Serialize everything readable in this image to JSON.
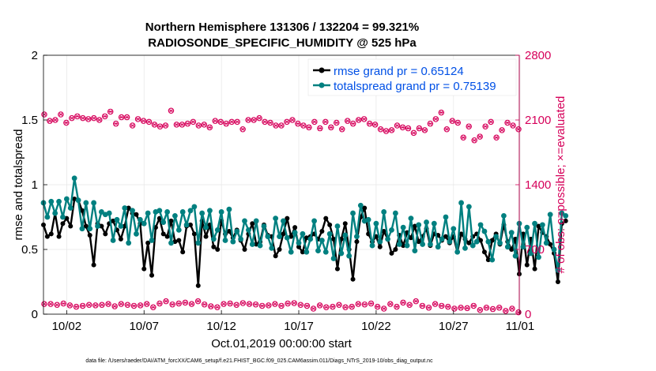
{
  "chart_data": {
    "type": "line",
    "title": "Northern Hemisphere 131306 / 132204 = 99.321%",
    "subtitle": "RADIOSONDE_SPECIFIC_HUMIDITY @ 525 hPa",
    "xlabel": "Oct.01,2019 00:00:00 start",
    "ylabel_left": "rmse and totalspread",
    "ylabel_right": "# of obs: o=possible; ×=evaluated",
    "xlim": [
      0.5,
      31.25
    ],
    "ylim_left": [
      0,
      2
    ],
    "ylim_right": [
      0,
      2800
    ],
    "x_ticks": [
      {
        "value": 2,
        "label": "10/02"
      },
      {
        "value": 7,
        "label": "10/07"
      },
      {
        "value": 12,
        "label": "10/12"
      },
      {
        "value": 17,
        "label": "10/17"
      },
      {
        "value": 22,
        "label": "10/22"
      },
      {
        "value": 27,
        "label": "10/27"
      },
      {
        "value": 32,
        "label": "11/01"
      }
    ],
    "y_ticks_left": [
      "0",
      "0.5",
      "1",
      "1.5",
      "2"
    ],
    "y_ticks_right": [
      "0",
      "700",
      "1400",
      "2100",
      "2800"
    ],
    "x_start": 0.5,
    "x_step": 0.25,
    "legend": [
      {
        "label": "rmse grand pr = 0.65124",
        "color": "#000000"
      },
      {
        "label": "totalspread grand pr = 0.75139",
        "color": "#008080"
      }
    ],
    "series": [
      {
        "name": "rmse",
        "color": "#000000",
        "axis": "left",
        "values": [
          0.69,
          0.6,
          0.62,
          0.78,
          0.6,
          0.7,
          0.74,
          0.68,
          0.89,
          0.88,
          0.8,
          0.68,
          0.61,
          0.38,
          0.7,
          0.68,
          0.62,
          0.7,
          0.72,
          0.65,
          0.58,
          0.68,
          0.82,
          0.78,
          0.77,
          0.7,
          0.35,
          0.55,
          0.3,
          0.67,
          0.74,
          0.62,
          0.6,
          0.72,
          0.56,
          0.57,
          0.48,
          0.68,
          0.69,
          0.62,
          0.22,
          0.72,
          0.6,
          0.69,
          0.52,
          0.5,
          0.72,
          0.62,
          0.64,
          0.59,
          0.65,
          0.57,
          0.5,
          0.62,
          0.7,
          0.54,
          0.56,
          0.69,
          0.61,
          0.6,
          0.45,
          0.5,
          0.62,
          0.74,
          0.6,
          0.67,
          0.52,
          0.48,
          0.59,
          0.6,
          0.62,
          0.58,
          0.64,
          0.74,
          0.69,
          0.58,
          0.35,
          0.58,
          0.7,
          0.5,
          0.27,
          0.56,
          0.75,
          0.82,
          0.62,
          0.56,
          0.6,
          0.52,
          0.64,
          0.58,
          0.47,
          0.5,
          0.61,
          0.53,
          0.63,
          0.59,
          0.68,
          0.56,
          0.6,
          0.66,
          0.53,
          0.62,
          0.61,
          0.57,
          0.6,
          0.55,
          0.6,
          0.48,
          0.62,
          0.58,
          0.55,
          0.6,
          0.62,
          0.57,
          0.48,
          0.42,
          0.57,
          0.62,
          0.54,
          0.69,
          0.56,
          0.5,
          0.58,
          0.31,
          0.62,
          0.38,
          0.58,
          0.35,
          0.68,
          0.63,
          0.6,
          0.54,
          0.47,
          0.25,
          0.7,
          0.72
        ]
      },
      {
        "name": "totalspread",
        "color": "#008080",
        "axis": "left",
        "values": [
          0.86,
          0.75,
          0.87,
          0.78,
          0.87,
          0.75,
          0.89,
          0.82,
          1.05,
          0.88,
          0.66,
          0.86,
          0.66,
          0.86,
          0.68,
          0.79,
          0.77,
          0.78,
          0.57,
          0.73,
          0.68,
          0.82,
          0.55,
          0.8,
          0.62,
          0.73,
          0.7,
          0.78,
          0.57,
          0.79,
          0.8,
          0.71,
          0.79,
          0.55,
          0.76,
          0.65,
          0.79,
          0.69,
          0.8,
          0.83,
          0.55,
          0.78,
          0.67,
          0.8,
          0.58,
          0.65,
          0.79,
          0.57,
          0.81,
          0.56,
          0.64,
          0.58,
          0.72,
          0.65,
          0.54,
          0.72,
          0.53,
          0.68,
          0.6,
          0.51,
          0.74,
          0.6,
          0.72,
          0.59,
          0.48,
          0.63,
          0.55,
          0.62,
          0.48,
          0.58,
          0.72,
          0.49,
          0.57,
          0.48,
          0.62,
          0.43,
          0.68,
          0.47,
          0.61,
          0.45,
          0.78,
          0.6,
          0.84,
          0.72,
          0.73,
          0.53,
          0.7,
          0.56,
          0.79,
          0.58,
          0.65,
          0.78,
          0.54,
          0.67,
          0.53,
          0.74,
          0.49,
          0.69,
          0.54,
          0.71,
          0.54,
          0.7,
          0.52,
          0.58,
          0.75,
          0.56,
          0.66,
          0.48,
          0.86,
          0.51,
          0.83,
          0.53,
          0.56,
          0.69,
          0.64,
          0.56,
          0.42,
          0.6,
          0.55,
          0.76,
          0.52,
          0.63,
          0.45,
          0.7,
          0.52,
          0.67,
          0.47,
          0.7,
          0.44,
          0.69,
          0.55,
          0.77,
          0.5,
          0.34,
          0.78,
          0.76
        ]
      },
      {
        "name": "obs possible",
        "color": "#d6005a",
        "axis": "right",
        "marker": "o",
        "values": [
          2160,
          2090,
          2100,
          2160,
          2070,
          2120,
          2140,
          2120,
          2110,
          2120,
          2100,
          2140,
          2190,
          2060,
          2130,
          2130,
          2040,
          2110,
          2090,
          2080,
          2050,
          2030,
          2040,
          2200,
          2050,
          2050,
          2060,
          2080,
          2040,
          2050,
          2020,
          2090,
          2080,
          2060,
          2080,
          2080,
          2000,
          2100,
          2100,
          2120,
          2080,
          2070,
          2040,
          2040,
          2080,
          2100,
          2060,
          2040,
          2020,
          2080,
          2010,
          2080,
          2020,
          2070,
          2000,
          2090,
          2060,
          2100,
          2110,
          2060,
          2050,
          2000,
          1980,
          1990,
          2040,
          2020,
          2010,
          1960,
          2010,
          1990,
          2060,
          2110,
          2180,
          2000,
          2090,
          2070,
          1910,
          2030,
          1880,
          1920,
          2030,
          2080,
          1910,
          1990,
          2070,
          2040,
          2000
        ]
      },
      {
        "name": "obs evaluated",
        "color": "#d6005a",
        "axis": "right",
        "marker": "x",
        "values": [
          110,
          110,
          100,
          115,
          95,
          80,
          90,
          100,
          95,
          100,
          110,
          85,
          110,
          100,
          90,
          95,
          110,
          75,
          115,
          140,
          105,
          115,
          125,
          110,
          140,
          105,
          85,
          75,
          110,
          115,
          100,
          120,
          110,
          105,
          90,
          95,
          110,
          90,
          115,
          120,
          100,
          90,
          60,
          95,
          75,
          80,
          100,
          75,
          80,
          110,
          105,
          115,
          80,
          60,
          110,
          80,
          125,
          100,
          140,
          90,
          70,
          110,
          90,
          80,
          60,
          70,
          65,
          90,
          45,
          70,
          55,
          70,
          35,
          60,
          20
        ]
      }
    ]
  },
  "footnote": "data file: /Users/raeder/DAI/ATM_forcXX/CAM6_setup/f.e21.FHIST_BGC.f09_025.CAM6assim.011/Diags_NTrS_2019-10/obs_diag_output.nc"
}
